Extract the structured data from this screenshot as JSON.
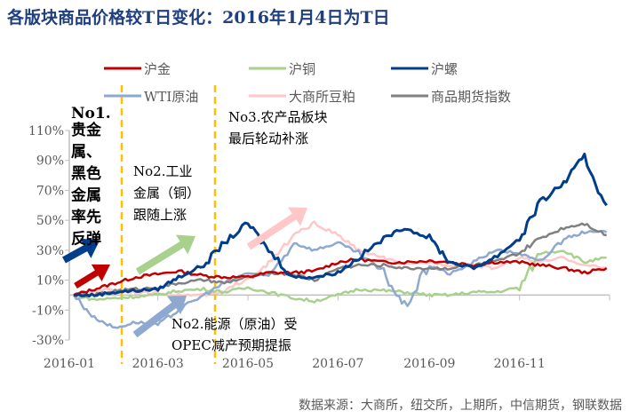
{
  "chart_data": {
    "type": "line",
    "title": "各版块商品价格较T日变化：2016年1月4日为T日",
    "ylim": [
      -30,
      110
    ],
    "yticks": [
      "-30%",
      "-10%",
      "10%",
      "30%",
      "50%",
      "70%",
      "90%",
      "110%"
    ],
    "ytick_values": [
      -30,
      -10,
      10,
      30,
      50,
      70,
      90,
      110
    ],
    "xticks": [
      "2016-01",
      "2016-03",
      "2016-05",
      "2016-07",
      "2016-09",
      "2016-11"
    ],
    "xlim": [
      "2016-01-04",
      "2016-12-30"
    ],
    "grid": false,
    "legend_placement": "top",
    "x": [
      "2016-01-04",
      "2016-01-18",
      "2016-02-01",
      "2016-02-15",
      "2016-03-01",
      "2016-03-15",
      "2016-04-01",
      "2016-04-15",
      "2016-05-01",
      "2016-05-15",
      "2016-06-01",
      "2016-06-15",
      "2016-07-01",
      "2016-07-15",
      "2016-08-01",
      "2016-08-15",
      "2016-09-01",
      "2016-09-15",
      "2016-10-01",
      "2016-10-15",
      "2016-11-01",
      "2016-11-15",
      "2016-12-01",
      "2016-12-15",
      "2016-12-30"
    ],
    "series": [
      {
        "name": "沪金",
        "color": "#C00000",
        "values": [
          0,
          4,
          8,
          12,
          14,
          16,
          13,
          12,
          12,
          15,
          15,
          16,
          22,
          24,
          22,
          22,
          23,
          22,
          20,
          22,
          22,
          20,
          18,
          15,
          18
        ]
      },
      {
        "name": "沪铜",
        "color": "#A9D18E",
        "values": [
          0,
          -3,
          -2,
          -1,
          0,
          3,
          4,
          2,
          5,
          2,
          -2,
          -4,
          0,
          4,
          3,
          2,
          0,
          0,
          2,
          2,
          5,
          28,
          30,
          22,
          25
        ]
      },
      {
        "name": "沪螺",
        "color": "#003D8C",
        "values": [
          0,
          0,
          2,
          3,
          4,
          12,
          20,
          35,
          48,
          30,
          12,
          12,
          15,
          25,
          38,
          45,
          38,
          22,
          18,
          25,
          38,
          62,
          75,
          92,
          60
        ]
      },
      {
        "name": "WTI原油",
        "color": "#8EA9D0",
        "values": [
          0,
          -15,
          -22,
          -18,
          -20,
          -10,
          0,
          8,
          15,
          12,
          35,
          30,
          35,
          28,
          15,
          -8,
          20,
          14,
          22,
          30,
          28,
          22,
          38,
          42,
          42
        ]
      },
      {
        "name": "大商所豆粕",
        "color": "#FFC7C7",
        "values": [
          0,
          3,
          4,
          2,
          1,
          0,
          0,
          2,
          12,
          20,
          40,
          48,
          40,
          30,
          25,
          20,
          22,
          20,
          20,
          18,
          25,
          22,
          25,
          20,
          18
        ]
      },
      {
        "name": "商品期货指数",
        "color": "#808080",
        "values": [
          0,
          0,
          3,
          4,
          5,
          8,
          10,
          8,
          12,
          15,
          14,
          10,
          18,
          20,
          20,
          18,
          18,
          18,
          20,
          22,
          28,
          38,
          45,
          48,
          40
        ]
      }
    ],
    "annotations": {
      "no1_head": "No1.",
      "no1_lines": [
        "贵金",
        "属、",
        "黑色",
        "金属",
        "率先",
        "反弹"
      ],
      "no2_metal": [
        "No2.工业",
        "金属（铜）",
        "跟随上涨"
      ],
      "no3": [
        "No3.农产品板块",
        "最后轮动补涨"
      ],
      "no2_energy": [
        "No2.能源（原油）受",
        "OPEC减产预期提振"
      ]
    },
    "phase_line_color": "#FFC000",
    "source": "数据来源：大商所，纽交所，上期所，中信期货，钢联数据"
  }
}
